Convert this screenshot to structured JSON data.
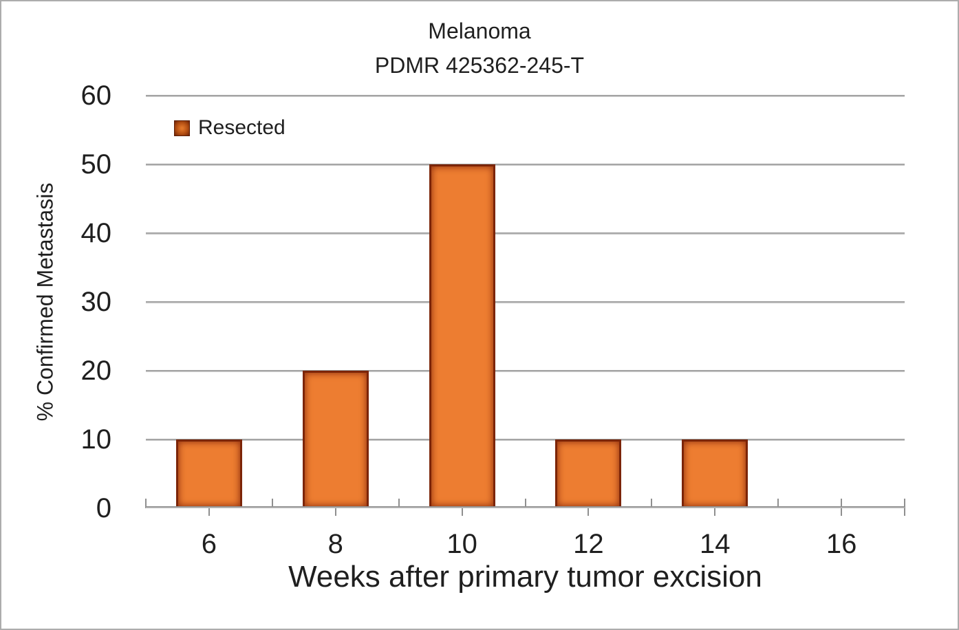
{
  "chart_data": {
    "type": "bar",
    "title_line1": "Melanoma",
    "title_line2": "PDMR 425362-245-T",
    "xlabel": "Weeks after primary tumor excision",
    "ylabel": "% Confirmed Metastasis",
    "categories": [
      "6",
      "8",
      "10",
      "12",
      "14",
      "16"
    ],
    "series": [
      {
        "name": "Resected",
        "values": [
          10,
          20,
          50,
          10,
          10,
          0
        ]
      }
    ],
    "y_ticks": [
      0,
      10,
      20,
      30,
      40,
      50,
      60
    ],
    "ylim": [
      0,
      60
    ],
    "grid": true,
    "legend": {
      "position": "top-left-inside",
      "entries": [
        {
          "label": "Resected",
          "swatch_color": "#B44F13"
        }
      ]
    },
    "colors": {
      "bar_fill": "#ED7D31",
      "bar_border": "#7C2508",
      "gridline": "#8F8F8F",
      "axis_line": "#858585",
      "text": "#1F1F1F",
      "canvas_border": "#ACACAC",
      "background": "#FFFFFF"
    }
  }
}
